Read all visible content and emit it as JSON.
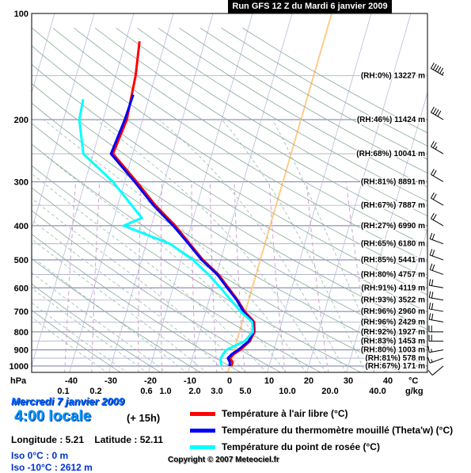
{
  "header": {
    "title": "Run GFS 12 Z du Mardi 6 janvier 2009"
  },
  "info": {
    "date": "Mercredi 7 janvier 2009",
    "hour": "4:00 locale",
    "offset": "(+ 15h)",
    "longitude": "Longitude : 5.21",
    "latitude": "Latitude : 52.11",
    "iso0": "Iso 0°C : 0 m",
    "iso10": "Iso -10°C : 2612 m",
    "copyright": "Copyright © 2007 Meteociel.fr"
  },
  "legend": [
    {
      "label": "Température à l'air libre (°C)",
      "color": "#ff0000"
    },
    {
      "label": "Température du thermomètre mouillé (Theta'w) (°C)",
      "color": "#0000ff"
    },
    {
      "label": "Température du point de rosée (°C)",
      "color": "#00ffff"
    }
  ],
  "chart_data": {
    "type": "line",
    "diagram": "skew-T log-P",
    "y_axis_label": "hPa",
    "x_axis_label": "°C",
    "mixing_ratio_label": "g/kg",
    "pressure_ticks": [
      100,
      200,
      300,
      400,
      500,
      600,
      700,
      800,
      900,
      1000
    ],
    "temp_ticks": [
      -40,
      -30,
      -20,
      -10,
      0,
      10,
      20,
      30,
      40
    ],
    "mixing_ratio_ticks": [
      "0.1",
      "0.2",
      "0.6",
      "1.0",
      "2.0",
      "3.0",
      "5.0",
      "10.0",
      "20.0",
      "40.0"
    ],
    "grid": true,
    "series": [
      {
        "name": "Température à l'air libre (°C)",
        "color": "#ff0000",
        "points": [
          [
            1000,
            0.5
          ],
          [
            975,
            0.5
          ],
          [
            950,
            -0.5
          ],
          [
            925,
            0.2
          ],
          [
            900,
            1.5
          ],
          [
            850,
            3.3
          ],
          [
            800,
            3.8
          ],
          [
            750,
            3.0
          ],
          [
            700,
            -0.2
          ],
          [
            650,
            -2.8
          ],
          [
            600,
            -6
          ],
          [
            550,
            -9.5
          ],
          [
            500,
            -14.5
          ],
          [
            450,
            -19
          ],
          [
            400,
            -24
          ],
          [
            350,
            -30.5
          ],
          [
            300,
            -37
          ],
          [
            250,
            -45
          ],
          [
            200,
            -44
          ],
          [
            150,
            -45
          ],
          [
            120,
            -46.5
          ]
        ]
      },
      {
        "name": "Température du thermomètre mouillé (Theta'w) (°C)",
        "color": "#0000ff",
        "points": [
          [
            1000,
            0
          ],
          [
            975,
            -0.2
          ],
          [
            950,
            -1
          ],
          [
            925,
            -0.3
          ],
          [
            900,
            1
          ],
          [
            850,
            3
          ],
          [
            800,
            3.5
          ],
          [
            750,
            2.7
          ],
          [
            700,
            -0.5
          ],
          [
            650,
            -3
          ],
          [
            600,
            -6.3
          ],
          [
            550,
            -9.8
          ],
          [
            500,
            -14.8
          ],
          [
            450,
            -19.3
          ],
          [
            400,
            -24.5
          ],
          [
            350,
            -31
          ],
          [
            300,
            -37.5
          ],
          [
            250,
            -45.5
          ],
          [
            200,
            -44.5
          ],
          [
            170,
            -44.2
          ]
        ]
      },
      {
        "name": "Température du point de rosée (°C)",
        "color": "#00ffff",
        "points": [
          [
            1000,
            -2
          ],
          [
            975,
            -2.5
          ],
          [
            950,
            -2.8
          ],
          [
            925,
            -2.5
          ],
          [
            900,
            -2
          ],
          [
            850,
            2
          ],
          [
            800,
            3.4
          ],
          [
            750,
            2.5
          ],
          [
            700,
            -1.2
          ],
          [
            650,
            -4.5
          ],
          [
            600,
            -8
          ],
          [
            550,
            -12
          ],
          [
            500,
            -17
          ],
          [
            450,
            -24
          ],
          [
            400,
            -37
          ],
          [
            380,
            -33
          ],
          [
            350,
            -36.5
          ],
          [
            300,
            -43
          ],
          [
            250,
            -52.5
          ],
          [
            200,
            -56
          ],
          [
            175,
            -56.5
          ]
        ]
      }
    ],
    "height_labels": [
      {
        "p": 150,
        "text": "(RH:0%) 13227 m"
      },
      {
        "p": 200,
        "text": "(RH:46%) 11424 m"
      },
      {
        "p": 250,
        "text": "(RH:68%) 10041 m"
      },
      {
        "p": 300,
        "text": "(RH:81%) 8891 m"
      },
      {
        "p": 350,
        "text": "(RH:67%) 7887 m"
      },
      {
        "p": 400,
        "text": "(RH:27%) 6990 m"
      },
      {
        "p": 450,
        "text": "(RH:65%) 6180 m"
      },
      {
        "p": 500,
        "text": "(RH:85%) 5441 m"
      },
      {
        "p": 550,
        "text": "(RH:80%) 4757 m"
      },
      {
        "p": 600,
        "text": "(RH:91%) 4119 m"
      },
      {
        "p": 650,
        "text": "(RH:93%) 3522 m"
      },
      {
        "p": 700,
        "text": "(RH:96%) 2960 m"
      },
      {
        "p": 750,
        "text": "(RH:96%) 2429 m"
      },
      {
        "p": 800,
        "text": "(RH:92%) 1927 m"
      },
      {
        "p": 850,
        "text": "(RH:83%) 1453 m"
      },
      {
        "p": 900,
        "text": "(RH:80%) 1003 m"
      },
      {
        "p": 950,
        "text": "(RH:81%) 578 m"
      },
      {
        "p": 1000,
        "text": "(RH:67%) 171 m"
      }
    ],
    "wind_barbs": [
      {
        "p": 150,
        "dir": 300,
        "kt": 55
      },
      {
        "p": 200,
        "dir": 300,
        "kt": 40
      },
      {
        "p": 250,
        "dir": 300,
        "kt": 25
      },
      {
        "p": 300,
        "dir": 300,
        "kt": 20
      },
      {
        "p": 350,
        "dir": 300,
        "kt": 20
      },
      {
        "p": 400,
        "dir": 300,
        "kt": 20
      },
      {
        "p": 450,
        "dir": 290,
        "kt": 20
      },
      {
        "p": 500,
        "dir": 290,
        "kt": 20
      },
      {
        "p": 550,
        "dir": 290,
        "kt": 20
      },
      {
        "p": 600,
        "dir": 280,
        "kt": 20
      },
      {
        "p": 650,
        "dir": 280,
        "kt": 20
      },
      {
        "p": 700,
        "dir": 280,
        "kt": 20
      },
      {
        "p": 750,
        "dir": 280,
        "kt": 20
      },
      {
        "p": 800,
        "dir": 270,
        "kt": 20
      },
      {
        "p": 850,
        "dir": 270,
        "kt": 20
      },
      {
        "p": 900,
        "dir": 260,
        "kt": 15
      },
      {
        "p": 950,
        "dir": 250,
        "kt": 15
      },
      {
        "p": 1000,
        "dir": 230,
        "kt": 10
      }
    ]
  }
}
